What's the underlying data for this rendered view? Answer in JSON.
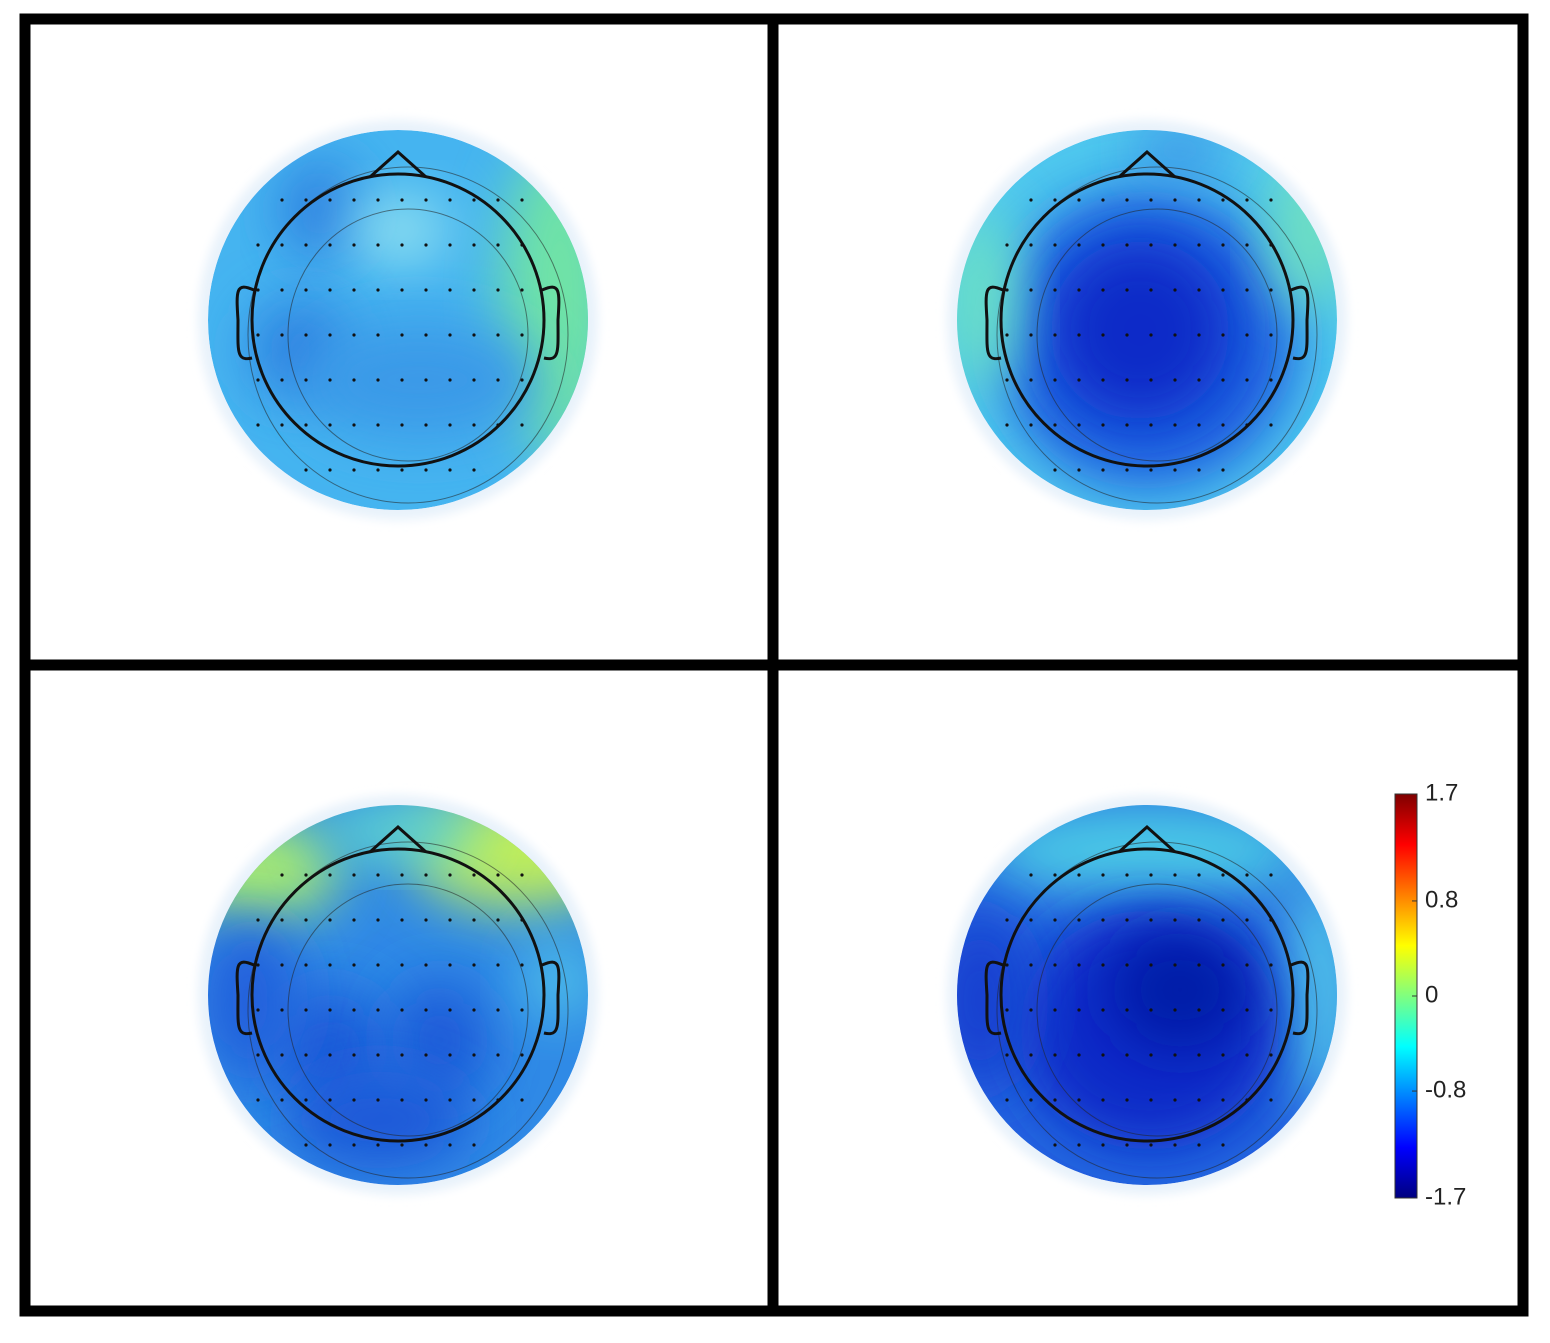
{
  "chart_data": {
    "type": "topomap",
    "colormap": "jet",
    "ylim": [
      -1.7,
      1.7
    ],
    "yticks": [
      -1.7,
      -0.8,
      0,
      0.8,
      1.7
    ]
  }
}
